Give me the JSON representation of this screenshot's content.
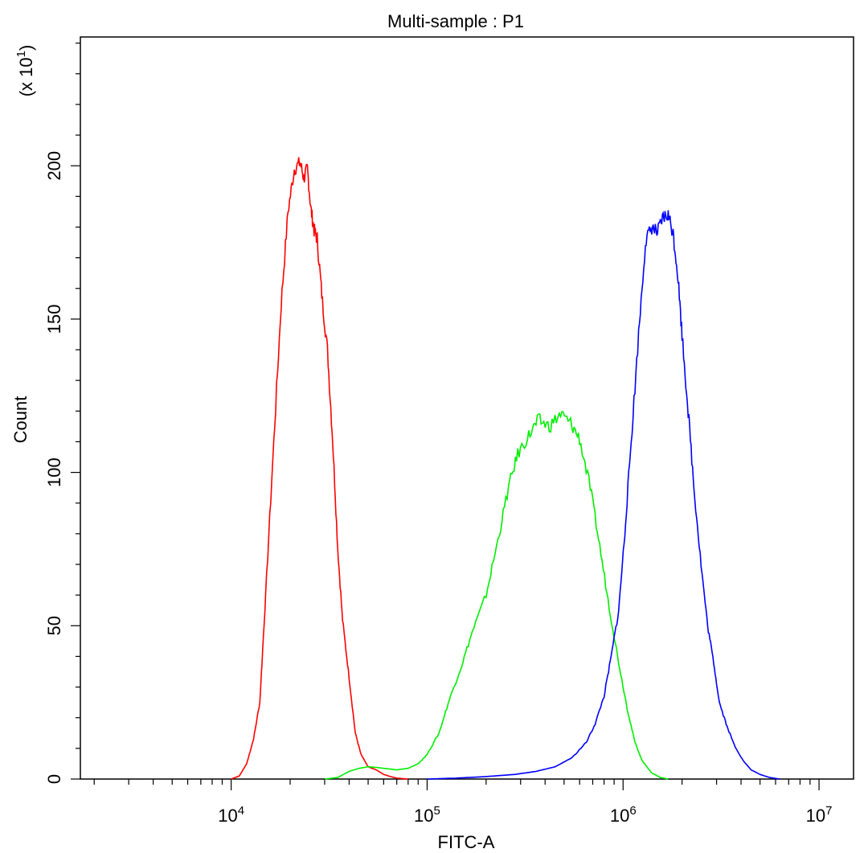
{
  "chart_data": {
    "type": "line",
    "title": "Multi-sample : P1",
    "xlabel": "FITC-A",
    "ylabel": "Count",
    "y_multiplier_label": "(x 10",
    "y_multiplier_exp": "1",
    "y_multiplier_close": ")",
    "x_scale": "log",
    "xlim": [
      1700,
      15000000
    ],
    "ylim": [
      0,
      2420
    ],
    "x_ticks": [
      {
        "value": 10000,
        "base": "10",
        "exp": "4"
      },
      {
        "value": 100000,
        "base": "10",
        "exp": "5"
      },
      {
        "value": 1000000,
        "base": "10",
        "exp": "6"
      },
      {
        "value": 10000000,
        "base": "10",
        "exp": "7"
      }
    ],
    "y_ticks": [
      {
        "value": 0,
        "label": "0"
      },
      {
        "value": 500,
        "label": "50"
      },
      {
        "value": 1000,
        "label": "100"
      },
      {
        "value": 1500,
        "label": "150"
      },
      {
        "value": 2000,
        "label": "200"
      }
    ],
    "grid": false,
    "legend": "none",
    "series": [
      {
        "color": "#ff0000",
        "x": [
          10000,
          11000,
          12000,
          13000,
          14000,
          15000,
          16500,
          18000,
          19500,
          21000,
          22500,
          23500,
          24500,
          25500,
          26500,
          27500,
          29000,
          31000,
          33000,
          35000,
          37000,
          40000,
          43000,
          46000,
          50000,
          55000,
          60000,
          65000,
          70000,
          80000
        ],
        "y": [
          0,
          10,
          50,
          130,
          250,
          600,
          1100,
          1550,
          1850,
          1990,
          2010,
          1960,
          1990,
          1860,
          1790,
          1760,
          1580,
          1400,
          1100,
          750,
          520,
          330,
          150,
          80,
          40,
          30,
          15,
          8,
          3,
          0
        ]
      },
      {
        "color": "#00ee00",
        "x": [
          30000,
          35000,
          40000,
          45000,
          50000,
          55000,
          60000,
          70000,
          80000,
          90000,
          100000,
          115000,
          130000,
          150000,
          170000,
          200000,
          230000,
          260000,
          290000,
          330000,
          370000,
          420000,
          480000,
          540000,
          600000,
          680000,
          760000,
          850000,
          950000,
          1050000,
          1150000,
          1250000,
          1400000,
          1550000,
          1700000
        ],
        "y": [
          0,
          5,
          25,
          35,
          40,
          38,
          35,
          30,
          35,
          50,
          80,
          150,
          260,
          370,
          480,
          600,
          780,
          950,
          1060,
          1120,
          1170,
          1150,
          1190,
          1160,
          1110,
          950,
          760,
          560,
          380,
          230,
          120,
          60,
          20,
          5,
          0
        ]
      },
      {
        "color": "#0000ff",
        "x": [
          100000,
          140000,
          200000,
          280000,
          360000,
          450000,
          550000,
          650000,
          720000,
          800000,
          870000,
          950000,
          1020000,
          1100000,
          1200000,
          1300000,
          1400000,
          1500000,
          1600000,
          1700000,
          1800000,
          1900000,
          2000000,
          2150000,
          2300000,
          2500000,
          2700000,
          2900000,
          3100000,
          3400000,
          3700000,
          4100000,
          4500000,
          5000000,
          5600000,
          6300000
        ],
        "y": [
          0,
          3,
          8,
          15,
          25,
          40,
          70,
          120,
          180,
          270,
          400,
          550,
          800,
          1100,
          1450,
          1750,
          1800,
          1780,
          1830,
          1840,
          1780,
          1650,
          1450,
          1200,
          950,
          700,
          500,
          380,
          250,
          170,
          110,
          60,
          30,
          15,
          5,
          0
        ]
      }
    ]
  }
}
